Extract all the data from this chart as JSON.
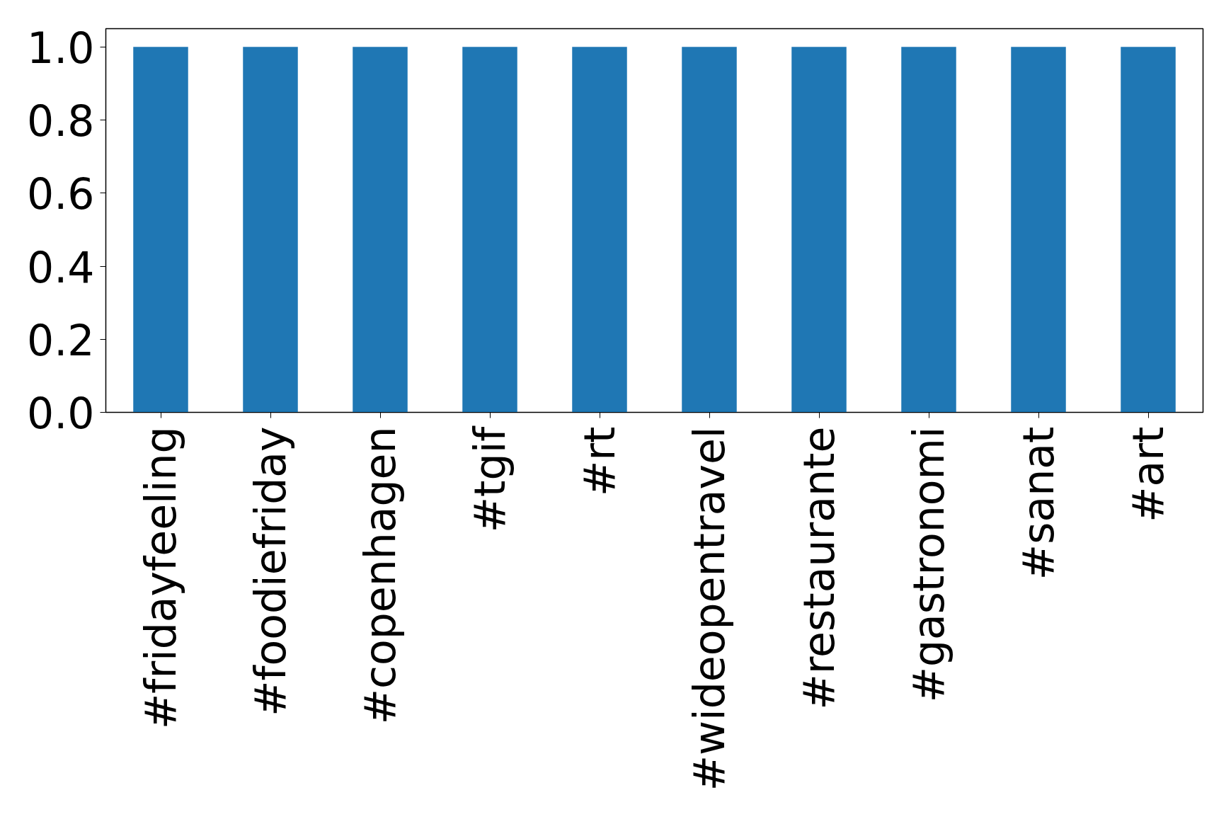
{
  "chart_data": {
    "type": "bar",
    "categories": [
      "#fridayfeeling",
      "#foodiefriday",
      "#copenhagen",
      "#tgif",
      "#rt",
      "#wideopentravel",
      "#restaurante",
      "#gastronomi",
      "#sanat",
      "#art"
    ],
    "values": [
      1.0,
      1.0,
      1.0,
      1.0,
      1.0,
      1.0,
      1.0,
      1.0,
      1.0,
      1.0
    ],
    "color": "#1f77b4",
    "ylim": [
      0,
      1.05
    ],
    "yticks": [
      {
        "value": 0,
        "label": "0.0"
      },
      {
        "value": 0.2,
        "label": "0.2"
      },
      {
        "value": 0.4,
        "label": "0.4"
      },
      {
        "value": 0.6,
        "label": "0.6"
      },
      {
        "value": 0.8,
        "label": "0.8"
      },
      {
        "value": 1.0,
        "label": "1.0"
      }
    ],
    "grid": false
  }
}
